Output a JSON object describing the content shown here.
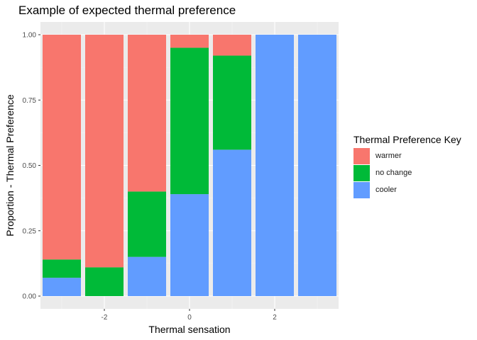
{
  "chart_data": {
    "type": "bar",
    "stacked": true,
    "title": "Example of expected thermal preference",
    "xlabel": "Thermal sensation",
    "ylabel": "Proportion - Thermal Preference",
    "x": [
      -3,
      -2,
      -1,
      0,
      1,
      2,
      3
    ],
    "xticks": [
      -2,
      0,
      2
    ],
    "xtick_labels": [
      "-2",
      "0",
      "2"
    ],
    "xlim": [
      -3.5,
      3.5
    ],
    "ylim": [
      0,
      1
    ],
    "yticks": [
      0,
      0.25,
      0.5,
      0.75,
      1
    ],
    "ytick_labels": [
      "0.00",
      "0.25",
      "0.50",
      "0.75",
      "1.00"
    ],
    "grid": true,
    "legend": {
      "title": "Thermal Preference Key",
      "position": "right"
    },
    "series": [
      {
        "name": "cooler",
        "color": "#619CFF",
        "values": [
          0.07,
          0.0,
          0.15,
          0.39,
          0.56,
          1.0,
          1.0
        ]
      },
      {
        "name": "no change",
        "color": "#00BA38",
        "values": [
          0.07,
          0.11,
          0.25,
          0.56,
          0.36,
          0.0,
          0.0
        ]
      },
      {
        "name": "warmer",
        "color": "#F8766D",
        "values": [
          0.86,
          0.89,
          0.6,
          0.05,
          0.08,
          0.0,
          0.0
        ]
      }
    ],
    "legend_order": [
      "warmer",
      "no change",
      "cooler"
    ]
  }
}
